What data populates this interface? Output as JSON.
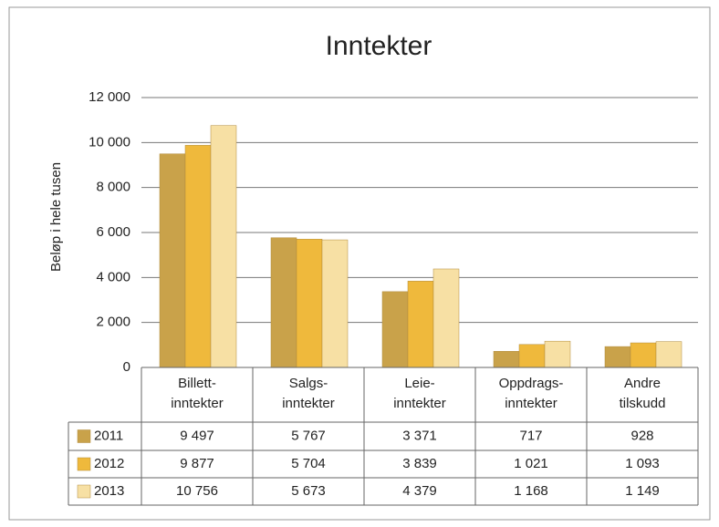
{
  "chart_data": {
    "type": "bar",
    "title": "Inntekter",
    "y_label": "Beløp i hele tusen",
    "categories": [
      [
        "Billett-",
        "inntekter"
      ],
      [
        "Salgs-",
        "inntekter"
      ],
      [
        "Leie-",
        "inntekter"
      ],
      [
        "Oppdrags-",
        "inntekter"
      ],
      [
        "Andre",
        "tilskudd"
      ]
    ],
    "series": [
      {
        "name": "2011",
        "color": "#c9a24a",
        "values": [
          9497,
          5767,
          3371,
          717,
          928
        ],
        "value_labels": [
          "9 497",
          "5 767",
          "3 371",
          "717",
          "928"
        ]
      },
      {
        "name": "2012",
        "color": "#efb93c",
        "values": [
          9877,
          5704,
          3839,
          1021,
          1093
        ],
        "value_labels": [
          "9 877",
          "5 704",
          "3 839",
          "1 021",
          "1 093"
        ]
      },
      {
        "name": "2013",
        "color": "#f7e0a4",
        "values": [
          10756,
          5673,
          4379,
          1168,
          1149
        ],
        "value_labels": [
          "10 756",
          "5 673",
          "4 379",
          "1 168",
          "1 149"
        ]
      }
    ],
    "ylim": [
      0,
      12000
    ],
    "yticks": [
      0,
      {
        "value": 2000,
        "label": "2 000"
      },
      {
        "value": 4000,
        "label": "4 000"
      },
      {
        "value": 6000,
        "label": "6 000"
      },
      {
        "value": 8000,
        "label": "8 000"
      },
      {
        "value": 10000,
        "label": "10 000"
      },
      {
        "value": 12000,
        "label": "12 000"
      }
    ],
    "grid": true
  }
}
